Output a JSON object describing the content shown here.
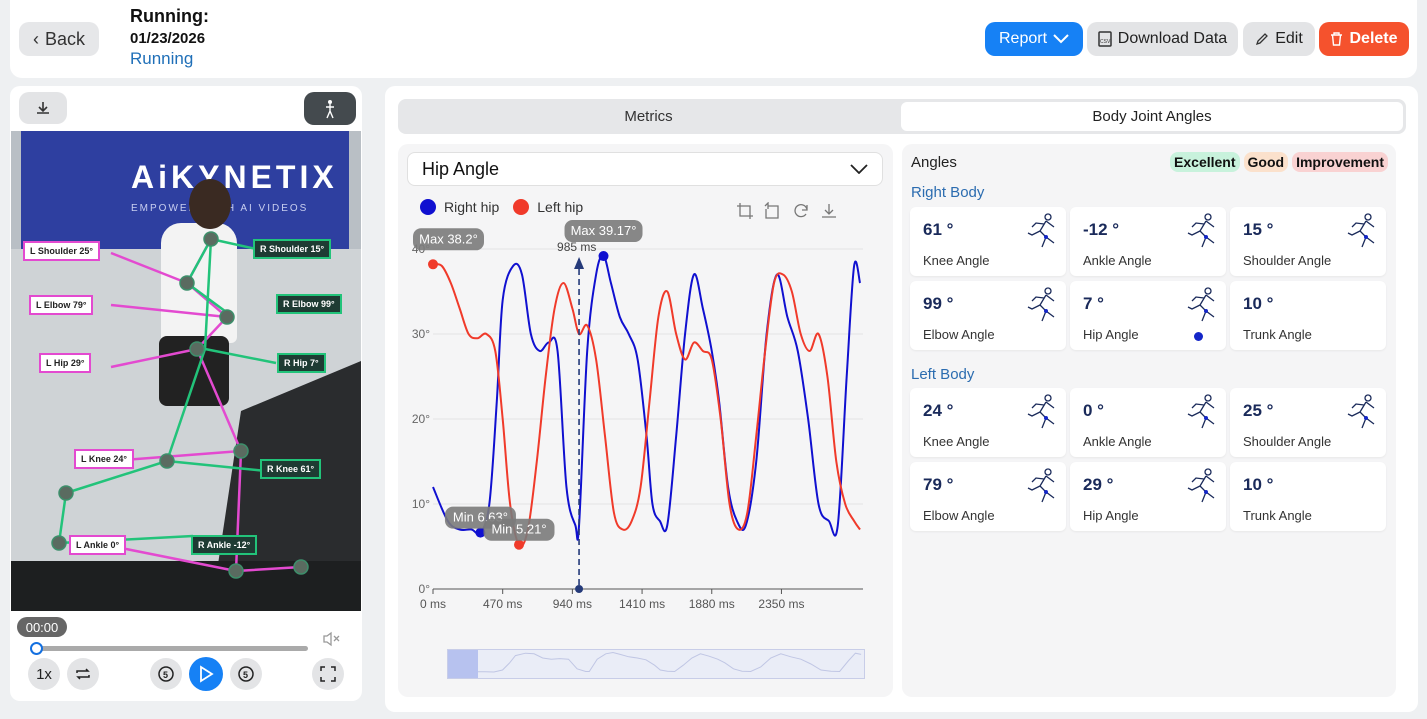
{
  "header": {
    "back_label": "Back",
    "title": "Running:",
    "date": "01/23/2026",
    "activity": "Running",
    "report_label": "Report",
    "download_label": "Download Data",
    "edit_label": "Edit",
    "delete_label": "Delete"
  },
  "video": {
    "banner_text": "AiKYNETIX",
    "banner_sub": "EMPOWER WITH AI VIDEOS",
    "timecode": "00:00",
    "progress": 0.0,
    "speed_label": "1x",
    "joint_labels": [
      {
        "text": "L Shoulder 25°",
        "side": "l"
      },
      {
        "text": "R Shoulder 15°",
        "side": "r"
      },
      {
        "text": "L Elbow 79°",
        "side": "l"
      },
      {
        "text": "R Elbow 99°",
        "side": "r"
      },
      {
        "text": "L Hip 29°",
        "side": "l"
      },
      {
        "text": "R Hip 7°",
        "side": "r"
      },
      {
        "text": "L Knee 24°",
        "side": "l"
      },
      {
        "text": "R Knee 61°",
        "side": "r"
      },
      {
        "text": "L Ankle 0°",
        "side": "l"
      },
      {
        "text": "R Ankle -12°",
        "side": "r"
      }
    ]
  },
  "tabs": {
    "metrics": "Metrics",
    "angles": "Body Joint Angles"
  },
  "chart": {
    "dropdown_value": "Hip Angle",
    "legend_right": "Right hip",
    "legend_left": "Left hip",
    "cursor_label": "985 ms"
  },
  "chart_data": {
    "type": "line",
    "x_unit": "ms",
    "x_ticks": [
      "0 ms",
      "470 ms",
      "940 ms",
      "1410 ms",
      "1880 ms",
      "2350 ms"
    ],
    "y_ticks": [
      "0°",
      "10°",
      "20°",
      "30°",
      "40°"
    ],
    "ylim": [
      0,
      40
    ],
    "xlim": [
      0,
      2900
    ],
    "series": [
      {
        "name": "Right hip",
        "color": "#1010d0",
        "x": [
          0,
          100,
          180,
          260,
          320,
          380,
          430,
          470,
          540,
          600,
          660,
          720,
          780,
          840,
          900,
          960,
          985,
          1040,
          1100,
          1150,
          1200,
          1260,
          1320,
          1380,
          1440,
          1480,
          1530,
          1580,
          1640,
          1700,
          1760,
          1820,
          1880,
          1930,
          1990,
          2050,
          2110,
          2180,
          2250,
          2320,
          2390,
          2460,
          2530,
          2600,
          2670,
          2730,
          2790,
          2840,
          2880
        ],
        "y": [
          12,
          8,
          7,
          7,
          6.6,
          10,
          22,
          34,
          38,
          37,
          30,
          28,
          29,
          28,
          12,
          7.5,
          7.5,
          28,
          37,
          39.2,
          36,
          32,
          30,
          27,
          18,
          10,
          8,
          7.5,
          18,
          30,
          37,
          33,
          28,
          22,
          12,
          8,
          7.5,
          15,
          30,
          37,
          32,
          28,
          20,
          10,
          8,
          7.5,
          25,
          38,
          36
        ]
      },
      {
        "name": "Left hip",
        "color": "#f03a2a",
        "x": [
          0,
          60,
          120,
          180,
          240,
          300,
          360,
          420,
          470,
          520,
          580,
          640,
          700,
          760,
          820,
          880,
          940,
          985,
          1040,
          1100,
          1160,
          1220,
          1280,
          1340,
          1400,
          1460,
          1520,
          1580,
          1640,
          1700,
          1760,
          1820,
          1880,
          1940,
          2000,
          2060,
          2120,
          2180,
          2240,
          2300,
          2360,
          2420,
          2480,
          2540,
          2600,
          2660,
          2720,
          2780,
          2840,
          2880
        ],
        "y": [
          38.2,
          38,
          36,
          33,
          30,
          29.5,
          30,
          28,
          20,
          10,
          5.2,
          7,
          15,
          25,
          33,
          36,
          33,
          30,
          31,
          27,
          18,
          9,
          7,
          8,
          12,
          22,
          32,
          35,
          30,
          27,
          29,
          28,
          27,
          20,
          10,
          7,
          9,
          18,
          28,
          36,
          37,
          35,
          30,
          28,
          30,
          25,
          15,
          10,
          8,
          7
        ]
      }
    ],
    "markers": [
      {
        "label": "Max 38.2°",
        "series": "Left hip",
        "x": 0,
        "y": 38.2
      },
      {
        "label": "Max 39.17°",
        "series": "Right hip",
        "x": 1150,
        "y": 39.17
      },
      {
        "label": "Min 6.63°",
        "series": "Right hip",
        "x": 320,
        "y": 6.63
      },
      {
        "label": "Min 5.21°",
        "series": "Left hip",
        "x": 580,
        "y": 5.21
      }
    ],
    "cursor_x": 985
  },
  "angles": {
    "title": "Angles",
    "badge_excellent": "Excellent",
    "badge_good": "Good",
    "badge_improvement": "Improvement",
    "right_label": "Right Body",
    "left_label": "Left Body",
    "right": [
      {
        "value": "61 °",
        "label": "Knee Angle",
        "icon": "runner-icon"
      },
      {
        "value": "-12 °",
        "label": "Ankle Angle",
        "icon": "runner-icon"
      },
      {
        "value": "15 °",
        "label": "Shoulder Angle",
        "icon": "runner-icon"
      },
      {
        "value": "99 °",
        "label": "Elbow Angle",
        "icon": "runner-icon"
      },
      {
        "value": "7 °",
        "label": "Hip Angle",
        "icon": "runner-icon",
        "selected": true
      },
      {
        "value": "10 °",
        "label": "Trunk Angle",
        "icon": ""
      }
    ],
    "left": [
      {
        "value": "24 °",
        "label": "Knee Angle",
        "icon": "runner-icon"
      },
      {
        "value": "0 °",
        "label": "Ankle Angle",
        "icon": "runner-icon"
      },
      {
        "value": "25 °",
        "label": "Shoulder Angle",
        "icon": "runner-icon"
      },
      {
        "value": "79 °",
        "label": "Elbow Angle",
        "icon": "runner-icon"
      },
      {
        "value": "29 °",
        "label": "Hip Angle",
        "icon": "runner-icon"
      },
      {
        "value": "10 °",
        "label": "Trunk Angle",
        "icon": ""
      }
    ]
  }
}
